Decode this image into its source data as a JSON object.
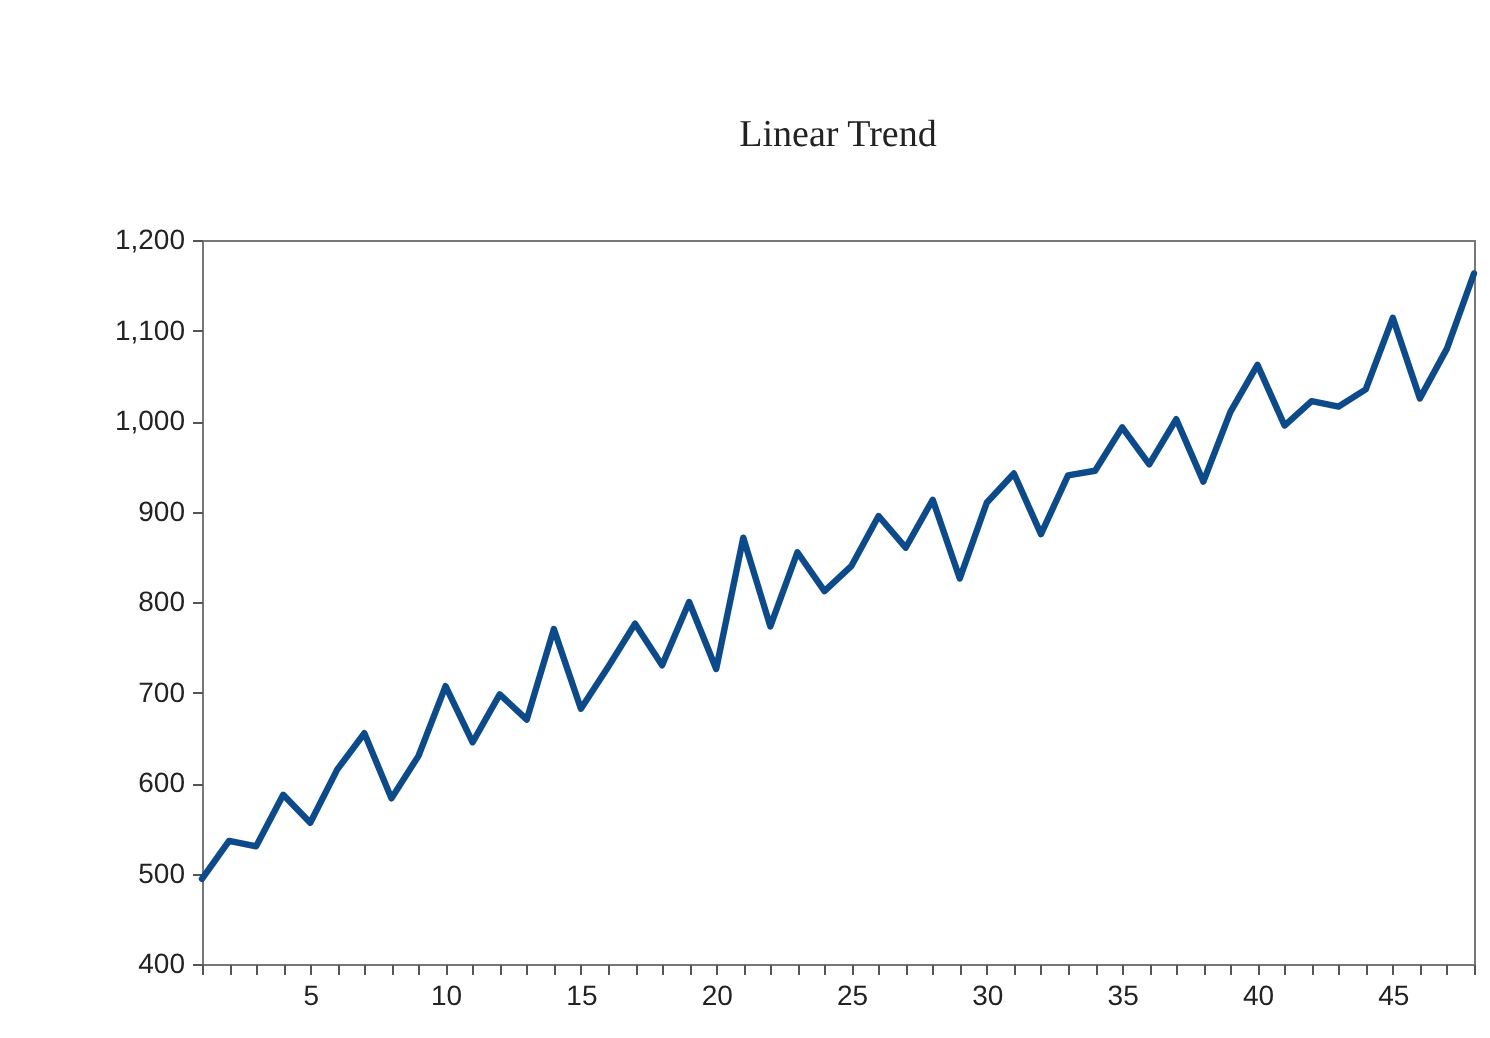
{
  "chart_data": {
    "type": "line",
    "title": "Linear Trend",
    "x": [
      1,
      2,
      3,
      4,
      5,
      6,
      7,
      8,
      9,
      10,
      11,
      12,
      13,
      14,
      15,
      16,
      17,
      18,
      19,
      20,
      21,
      22,
      23,
      24,
      25,
      26,
      27,
      28,
      29,
      30,
      31,
      32,
      33,
      34,
      35,
      36,
      37,
      38,
      39,
      40,
      41,
      42,
      43,
      44,
      45,
      46,
      47,
      48
    ],
    "series": [
      {
        "color": "#0d4a8a",
        "values": [
          494,
          536,
          530,
          587,
          556,
          615,
          655,
          583,
          630,
          707,
          645,
          698,
          670,
          770,
          682,
          728,
          776,
          730,
          800,
          726,
          871,
          773,
          855,
          812,
          840,
          895,
          860,
          913,
          826,
          910,
          942,
          875,
          940,
          945,
          993,
          952,
          1002,
          933,
          1010,
          1062,
          995,
          1022,
          1016,
          1035,
          1114,
          1025,
          1080,
          1163
        ]
      }
    ],
    "xlim": [
      1,
      48
    ],
    "xticks": [
      {
        "value": 1,
        "label": null
      },
      {
        "value": 2,
        "label": null
      },
      {
        "value": 3,
        "label": null
      },
      {
        "value": 4,
        "label": null
      },
      5,
      {
        "value": 6,
        "label": null
      },
      {
        "value": 7,
        "label": null
      },
      {
        "value": 8,
        "label": null
      },
      {
        "value": 9,
        "label": null
      },
      10,
      {
        "value": 11,
        "label": null
      },
      {
        "value": 12,
        "label": null
      },
      {
        "value": 13,
        "label": null
      },
      {
        "value": 14,
        "label": null
      },
      15,
      {
        "value": 16,
        "label": null
      },
      {
        "value": 17,
        "label": null
      },
      {
        "value": 18,
        "label": null
      },
      {
        "value": 19,
        "label": null
      },
      20,
      {
        "value": 21,
        "label": null
      },
      {
        "value": 22,
        "label": null
      },
      {
        "value": 23,
        "label": null
      },
      {
        "value": 24,
        "label": null
      },
      25,
      {
        "value": 26,
        "label": null
      },
      {
        "value": 27,
        "label": null
      },
      {
        "value": 28,
        "label": null
      },
      {
        "value": 29,
        "label": null
      },
      30,
      {
        "value": 31,
        "label": null
      },
      {
        "value": 32,
        "label": null
      },
      {
        "value": 33,
        "label": null
      },
      {
        "value": 34,
        "label": null
      },
      35,
      {
        "value": 36,
        "label": null
      },
      {
        "value": 37,
        "label": null
      },
      {
        "value": 38,
        "label": null
      },
      {
        "value": 39,
        "label": null
      },
      40,
      {
        "value": 41,
        "label": null
      },
      {
        "value": 42,
        "label": null
      },
      {
        "value": 43,
        "label": null
      },
      {
        "value": 44,
        "label": null
      },
      45,
      {
        "value": 46,
        "label": null
      },
      {
        "value": 47,
        "label": null
      },
      {
        "value": 48,
        "label": null
      }
    ],
    "ylim": [
      400,
      1200
    ],
    "yticks": [
      400,
      500,
      600,
      700,
      800,
      900,
      {
        "value": 1000,
        "label": "1,000"
      },
      {
        "value": 1100,
        "label": "1,100"
      },
      {
        "value": 1200,
        "label": "1,200"
      }
    ],
    "grid": false,
    "marker": "none",
    "line_style": "solid"
  }
}
